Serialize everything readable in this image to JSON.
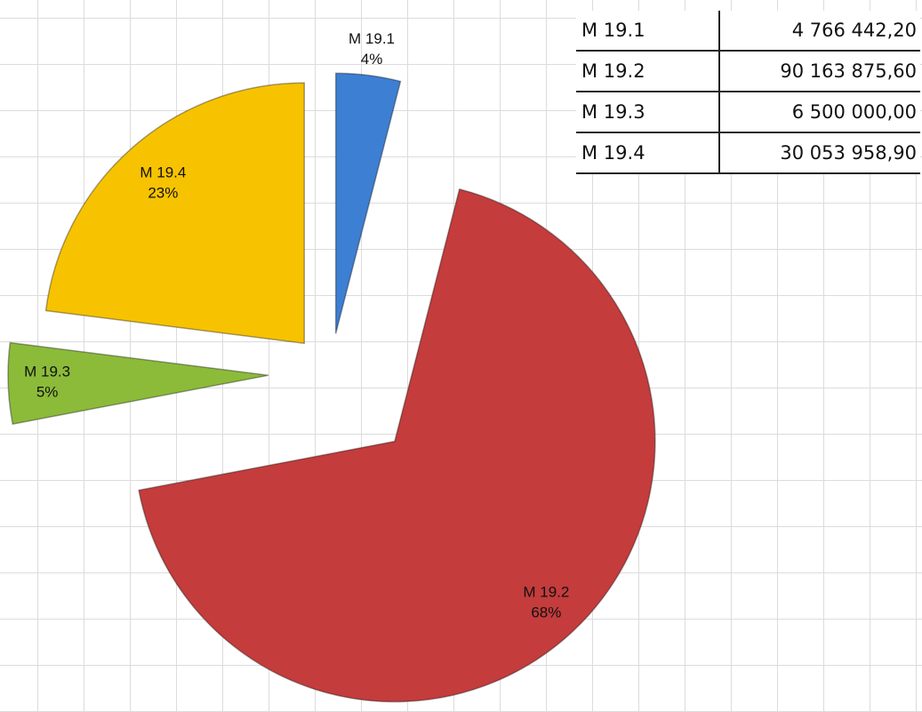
{
  "chart_data": {
    "type": "pie",
    "categories": [
      "M 19.1",
      "M 19.2",
      "M 19.3",
      "M 19.4"
    ],
    "values": [
      4,
      68,
      5,
      23
    ],
    "value_labels": [
      "4%",
      "68%",
      "5%",
      "23%"
    ],
    "colors": [
      "#3d7fd3",
      "#c43c3c",
      "#8cbb3a",
      "#f7c300"
    ]
  },
  "table": {
    "rows": [
      [
        "M 19.1",
        "4 766 442,20"
      ],
      [
        "M 19.2",
        "90 163 875,60"
      ],
      [
        "M 19.3",
        "6 500 000,00"
      ],
      [
        "M 19.4",
        "30 053 958,90"
      ]
    ]
  }
}
